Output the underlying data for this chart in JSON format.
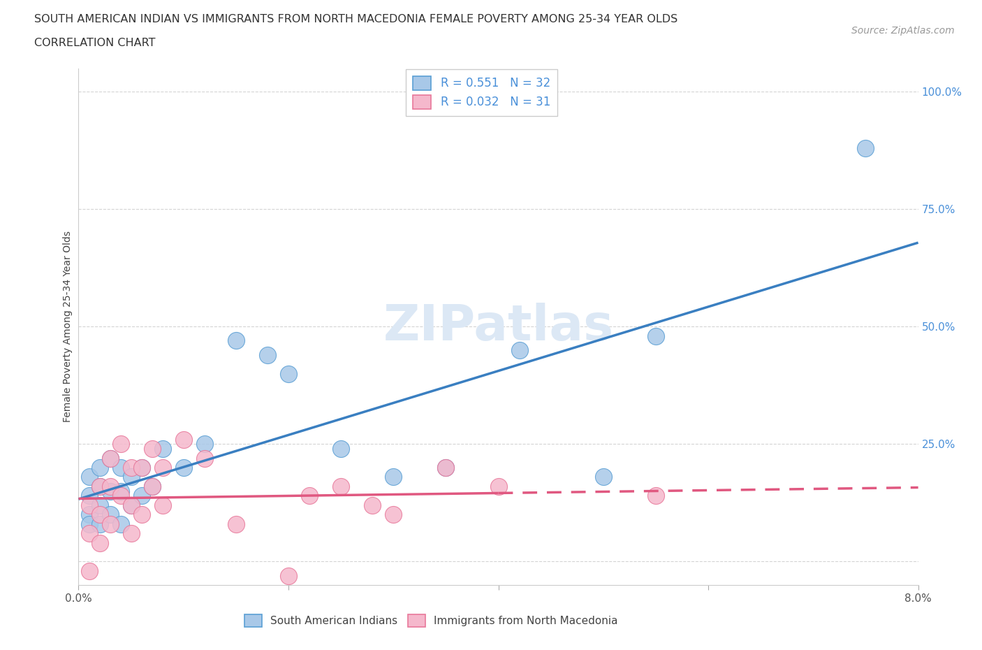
{
  "title_line1": "SOUTH AMERICAN INDIAN VS IMMIGRANTS FROM NORTH MACEDONIA FEMALE POVERTY AMONG 25-34 YEAR OLDS",
  "title_line2": "CORRELATION CHART",
  "source": "Source: ZipAtlas.com",
  "ylabel": "Female Poverty Among 25-34 Year Olds",
  "xlim": [
    0.0,
    0.08
  ],
  "ylim": [
    -0.05,
    1.05
  ],
  "plot_ylim": [
    0.0,
    1.05
  ],
  "xticks": [
    0.0,
    0.02,
    0.04,
    0.06,
    0.08
  ],
  "xticklabels": [
    "0.0%",
    "",
    "",
    "",
    "8.0%"
  ],
  "yticks": [
    0.25,
    0.5,
    0.75,
    1.0
  ],
  "yticklabels": [
    "25.0%",
    "50.0%",
    "75.0%",
    "100.0%"
  ],
  "blue_R": 0.551,
  "blue_N": 32,
  "pink_R": 0.032,
  "pink_N": 31,
  "blue_color": "#a8c8e8",
  "pink_color": "#f5b8cc",
  "blue_edge_color": "#5a9fd4",
  "pink_edge_color": "#e8789a",
  "blue_line_color": "#3a7fc1",
  "pink_line_color": "#e05880",
  "grid_color": "#d4d4d4",
  "background_color": "#ffffff",
  "blue_scatter_x": [
    0.001,
    0.001,
    0.001,
    0.001,
    0.002,
    0.002,
    0.002,
    0.002,
    0.003,
    0.003,
    0.003,
    0.004,
    0.004,
    0.004,
    0.005,
    0.005,
    0.006,
    0.006,
    0.007,
    0.008,
    0.01,
    0.012,
    0.015,
    0.018,
    0.02,
    0.025,
    0.03,
    0.035,
    0.042,
    0.05,
    0.055,
    0.075
  ],
  "blue_scatter_y": [
    0.18,
    0.14,
    0.1,
    0.08,
    0.2,
    0.16,
    0.12,
    0.08,
    0.22,
    0.15,
    0.1,
    0.2,
    0.15,
    0.08,
    0.18,
    0.12,
    0.2,
    0.14,
    0.16,
    0.24,
    0.2,
    0.25,
    0.47,
    0.44,
    0.4,
    0.24,
    0.18,
    0.2,
    0.45,
    0.18,
    0.48,
    0.88
  ],
  "pink_scatter_x": [
    0.001,
    0.001,
    0.001,
    0.002,
    0.002,
    0.002,
    0.003,
    0.003,
    0.003,
    0.004,
    0.004,
    0.005,
    0.005,
    0.005,
    0.006,
    0.006,
    0.007,
    0.007,
    0.008,
    0.008,
    0.01,
    0.012,
    0.015,
    0.02,
    0.022,
    0.025,
    0.028,
    0.03,
    0.035,
    0.04,
    0.055
  ],
  "pink_scatter_y": [
    0.12,
    0.06,
    -0.02,
    0.16,
    0.1,
    0.04,
    0.22,
    0.16,
    0.08,
    0.25,
    0.14,
    0.2,
    0.12,
    0.06,
    0.2,
    0.1,
    0.24,
    0.16,
    0.2,
    0.12,
    0.26,
    0.22,
    0.08,
    -0.03,
    0.14,
    0.16,
    0.12,
    0.1,
    0.2,
    0.16,
    0.14
  ],
  "title_fontsize": 11.5,
  "subtitle_fontsize": 11.5,
  "source_fontsize": 10,
  "axis_label_fontsize": 10,
  "tick_fontsize": 11,
  "legend_fontsize": 12,
  "watermark_color": "#dce8f5"
}
